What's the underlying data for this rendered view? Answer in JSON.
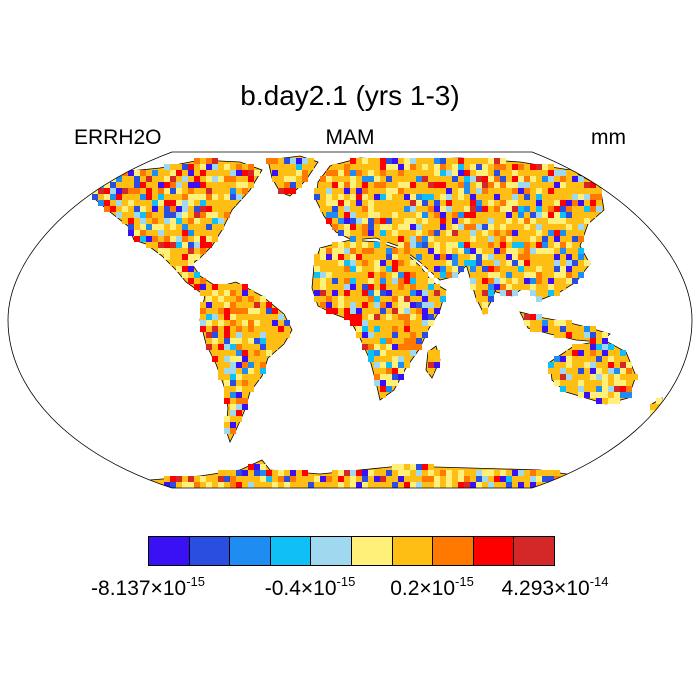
{
  "title": "b.day2.1 (yrs 1-3)",
  "left_label": "ERRH2O",
  "center_label": "MAM",
  "right_label": "mm",
  "colorbar": {
    "colors": [
      "#3a10f5",
      "#2a4fe0",
      "#1e8cf0",
      "#10bff5",
      "#a0d8f0",
      "#fff07a",
      "#ffbe14",
      "#ff7800",
      "#ff0000",
      "#d42828"
    ],
    "labels": [
      {
        "mantissa": "-8.137",
        "exponent": "-15"
      },
      {
        "mantissa": "-0.4",
        "exponent": "-15"
      },
      {
        "mantissa": "0.2",
        "exponent": "-15"
      },
      {
        "mantissa": "4.293",
        "exponent": "-14"
      }
    ]
  },
  "land_mask_color": "#ffbe14",
  "ocean_color": "#ffffff"
}
